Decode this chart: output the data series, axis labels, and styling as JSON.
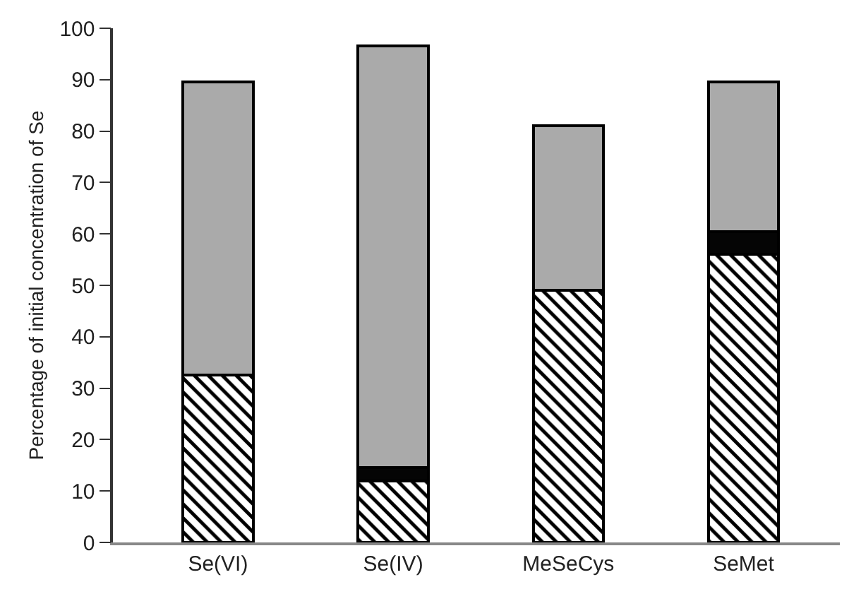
{
  "chart_data": {
    "type": "bar",
    "stacked": true,
    "ylabel": "Percentage of initial concentration of Se",
    "categories": [
      "Se(VI)",
      "Se(IV)",
      "MeSeCys",
      "SeMet"
    ],
    "series": [
      {
        "color": "#000000",
        "values": [
          32.5,
          12,
          49,
          56
        ]
      },
      {
        "color": "#050505",
        "values": [
          0,
          2.5,
          0,
          4.5
        ]
      },
      {
        "color": "#aaaaaa",
        "values": [
          57,
          82,
          32,
          29
        ]
      }
    ],
    "ylim": [
      0,
      100
    ],
    "yticks": [
      0,
      10,
      20,
      30,
      40,
      50,
      60,
      70,
      80,
      90,
      100
    ],
    "grid": false
  }
}
